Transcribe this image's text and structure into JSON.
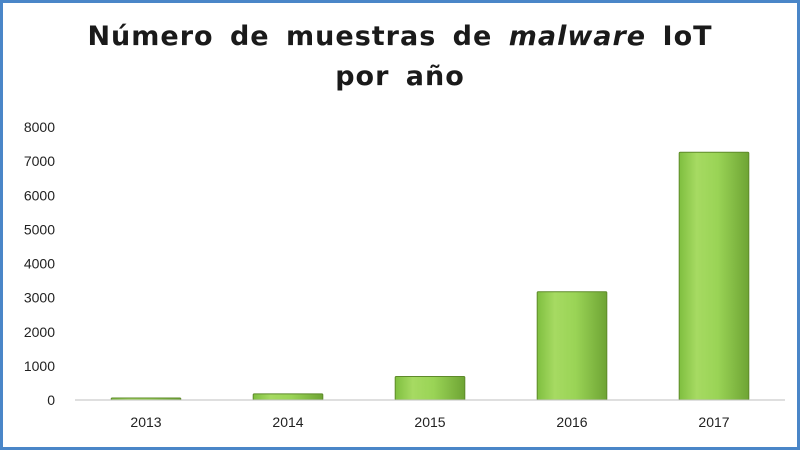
{
  "title": {
    "before_italic": "Número de muestras de",
    "italic": "malware",
    "after_italic": "IoT",
    "line2": "por año"
  },
  "chart_data": {
    "type": "bar",
    "title": "Número de muestras de malware IoT por año",
    "categories": [
      "2013",
      "2014",
      "2015",
      "2016",
      "2017"
    ],
    "values": [
      10,
      180,
      690,
      3170,
      7260
    ],
    "xlabel": "",
    "ylabel": "",
    "ylim": [
      0,
      8000
    ],
    "yticks": [
      0,
      1000,
      2000,
      3000,
      4000,
      5000,
      6000,
      7000,
      8000
    ],
    "grid": false,
    "legend": "none",
    "bar_color": "#92d050",
    "bar_edge_color": "#5e8a2a"
  }
}
